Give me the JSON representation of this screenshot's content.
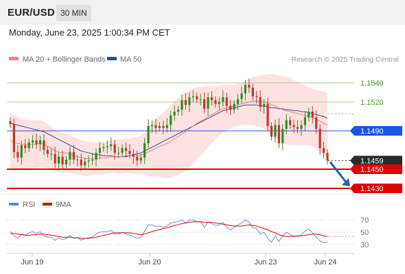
{
  "header": {
    "symbol": "EUR/USD",
    "timeframe": "30 MIN",
    "datetime": "Monday, June 23, 2025 1:00:34 PM CET"
  },
  "legend": {
    "ma20_label": "MA 20 + Bollinger Bands",
    "ma50_label": "MA 50",
    "copyright": "Research © 2025 Trading Central"
  },
  "rsi_legend": {
    "rsi_label": "RSI",
    "ma_label": "9MA"
  },
  "colors": {
    "bullish": "#2e8b22",
    "bearish": "#c0392b",
    "ma20": "#f08080",
    "ma50": "#2c4f8a",
    "bollinger_fill": "#fde2e2",
    "pivot": "#1a55e3",
    "support": "#e00000",
    "resistance": "#a7cf82",
    "arrow": "#2b5fa8"
  },
  "chart_data": {
    "type": "candlestick",
    "price_ylim": [
      1.1425,
      1.1555
    ],
    "x_labels": [
      "Jun 19",
      "Jun 20",
      "Jun 23",
      "Jun 24"
    ],
    "levels": [
      {
        "label": "1.1540",
        "value": 1.154,
        "role": "resistance"
      },
      {
        "label": "1.1520",
        "value": 1.152,
        "role": "resistance"
      },
      {
        "label": "1.1490",
        "value": 1.149,
        "role": "pivot"
      },
      {
        "label": "1.1459",
        "value": 1.1459,
        "role": "last"
      },
      {
        "label": "1.1450",
        "value": 1.145,
        "role": "support"
      },
      {
        "label": "1.1430",
        "value": 1.143,
        "role": "support"
      }
    ],
    "close": [
      1.1497,
      1.1468,
      1.1462,
      1.1475,
      1.1472,
      1.1478,
      1.148,
      1.1476,
      1.148,
      1.147,
      1.1466,
      1.1466,
      1.1456,
      1.1463,
      1.1455,
      1.146,
      1.1468,
      1.146,
      1.146,
      1.1454,
      1.1458,
      1.1459,
      1.146,
      1.1467,
      1.1472,
      1.1473,
      1.1474,
      1.1476,
      1.1467,
      1.1467,
      1.1472,
      1.1469,
      1.1466,
      1.1463,
      1.1459,
      1.1462,
      1.1477,
      1.1495,
      1.1496,
      1.1493,
      1.1495,
      1.1493,
      1.1496,
      1.1506,
      1.151,
      1.1512,
      1.1522,
      1.1517,
      1.1525,
      1.1526,
      1.1523,
      1.1523,
      1.1513,
      1.1525,
      1.1522,
      1.1518,
      1.152,
      1.1525,
      1.1516,
      1.1512,
      1.1518,
      1.1523,
      1.1529,
      1.1538,
      1.1535,
      1.1526,
      1.1525,
      1.1515,
      1.1518,
      1.1495,
      1.1484,
      1.1496,
      1.1477,
      1.1492,
      1.1501,
      1.1496,
      1.1494,
      1.1492,
      1.1496,
      1.1504,
      1.151,
      1.1504,
      1.1492,
      1.1472,
      1.1467,
      1.1459
    ],
    "ma20": [
      1.148,
      1.1478,
      1.1477,
      1.1476,
      1.1476,
      1.1476,
      1.1476,
      1.1476,
      1.1477,
      1.1476,
      1.1474,
      1.1472,
      1.1469,
      1.1468,
      1.1467,
      1.1467,
      1.1466,
      1.1464,
      1.1463,
      1.1462,
      1.1461,
      1.1461,
      1.1461,
      1.1461,
      1.1461,
      1.1462,
      1.1462,
      1.1463,
      1.1463,
      1.1463,
      1.1463,
      1.1464,
      1.1464,
      1.1464,
      1.1464,
      1.1465,
      1.1466,
      1.1468,
      1.147,
      1.1472,
      1.1474,
      1.1475,
      1.1477,
      1.1479,
      1.1482,
      1.1484,
      1.1487,
      1.1489,
      1.1492,
      1.1495,
      1.1498,
      1.15,
      1.1502,
      1.1505,
      1.1507,
      1.1509,
      1.1511,
      1.1513,
      1.1514,
      1.1515,
      1.1516,
      1.1517,
      1.1518,
      1.1519,
      1.152,
      1.1521,
      1.1521,
      1.1521,
      1.152,
      1.1519,
      1.1517,
      1.1516,
      1.1514,
      1.1512,
      1.1511,
      1.151,
      1.1509,
      1.1508,
      1.1507,
      1.1506,
      1.1505,
      1.1504,
      1.1502,
      1.15,
      1.1498,
      1.1496
    ],
    "bollinger": {
      "upper_offset": [
        0.0028,
        0.0028,
        0.0027,
        0.0026,
        0.0026,
        0.0025,
        0.0025,
        0.0025,
        0.0024,
        0.0024,
        0.0023,
        0.0022,
        0.0022,
        0.0021,
        0.0021,
        0.002,
        0.002,
        0.0019,
        0.0019,
        0.0018,
        0.0018,
        0.0018,
        0.0017,
        0.0017,
        0.0017,
        0.0017,
        0.0017,
        0.0017,
        0.0017,
        0.0018,
        0.0018,
        0.0018,
        0.0018,
        0.0019,
        0.0019,
        0.002,
        0.0022,
        0.0025,
        0.0028,
        0.003,
        0.0032,
        0.0034,
        0.0036,
        0.0038,
        0.0039,
        0.004,
        0.0041,
        0.0041,
        0.004,
        0.0039,
        0.0038,
        0.0036,
        0.0034,
        0.0032,
        0.003,
        0.0028,
        0.0026,
        0.0025,
        0.0024,
        0.0023,
        0.0022,
        0.0022,
        0.0022,
        0.0023,
        0.0024,
        0.0025,
        0.0026,
        0.0027,
        0.0028,
        0.003,
        0.0032,
        0.0033,
        0.0034,
        0.0035,
        0.0035,
        0.0035,
        0.0034,
        0.0033,
        0.0032,
        0.0031,
        0.003,
        0.003,
        0.0031,
        0.0032,
        0.0033,
        0.0034
      ]
    },
    "ma50": [
      1.1498,
      1.1497,
      1.1496,
      1.1495,
      1.1494,
      1.1493,
      1.1492,
      1.1491,
      1.149,
      1.1489,
      1.1487,
      1.1485,
      1.1483,
      1.1481,
      1.1479,
      1.1477,
      1.1475,
      1.1473,
      1.1471,
      1.1469,
      1.1468,
      1.1467,
      1.1466,
      1.1465,
      1.1465,
      1.1464,
      1.1464,
      1.1464,
      1.1463,
      1.1463,
      1.1463,
      1.1463,
      1.1464,
      1.1465,
      1.1466,
      1.1467,
      1.1469,
      1.1471,
      1.1473,
      1.1475,
      1.1477,
      1.1479,
      1.1481,
      1.1483,
      1.1485,
      1.1487,
      1.1489,
      1.1491,
      1.1493,
      1.1495,
      1.1497,
      1.1499,
      1.1501,
      1.1503,
      1.1505,
      1.1507,
      1.1509,
      1.1511,
      1.1512,
      1.1513,
      1.1514,
      1.1515,
      1.1516,
      1.1517,
      1.1517,
      1.1517,
      1.1517,
      1.1516,
      1.1516,
      1.1515,
      1.1514,
      1.1514,
      1.1513,
      1.1513,
      1.1512,
      1.1512,
      1.1511,
      1.1511,
      1.151,
      1.151,
      1.1509,
      1.1508,
      1.1507,
      1.1506,
      1.1505,
      1.1503
    ],
    "rsi": {
      "levels": [
        70,
        50,
        30
      ],
      "ylim": [
        20,
        80
      ],
      "rsi": [
        51,
        44,
        40,
        47,
        45,
        49,
        51,
        48,
        51,
        44,
        42,
        42,
        37,
        41,
        38,
        40,
        45,
        40,
        41,
        37,
        40,
        41,
        42,
        47,
        50,
        51,
        51,
        53,
        47,
        47,
        50,
        47,
        45,
        43,
        40,
        42,
        52,
        62,
        62,
        59,
        60,
        58,
        60,
        65,
        66,
        67,
        70,
        65,
        70,
        70,
        67,
        67,
        58,
        67,
        64,
        61,
        62,
        66,
        58,
        54,
        58,
        62,
        65,
        70,
        66,
        57,
        56,
        47,
        50,
        40,
        34,
        44,
        35,
        44,
        50,
        46,
        44,
        43,
        46,
        52,
        55,
        49,
        42,
        36,
        33,
        34
      ],
      "ma9": [
        48,
        48,
        47,
        46,
        45,
        45,
        46,
        46,
        47,
        47,
        46,
        45,
        44,
        43,
        42,
        42,
        42,
        41,
        41,
        40,
        40,
        40,
        41,
        42,
        43,
        45,
        46,
        48,
        49,
        49,
        49,
        49,
        49,
        48,
        47,
        46,
        47,
        49,
        51,
        53,
        54,
        56,
        57,
        59,
        61,
        62,
        64,
        65,
        66,
        67,
        67,
        67,
        66,
        66,
        66,
        65,
        64,
        63,
        62,
        61,
        60,
        60,
        60,
        61,
        62,
        61,
        60,
        58,
        56,
        54,
        51,
        49,
        46,
        44,
        43,
        43,
        43,
        44,
        44,
        45,
        46,
        47,
        47,
        46,
        44,
        43
      ]
    }
  }
}
